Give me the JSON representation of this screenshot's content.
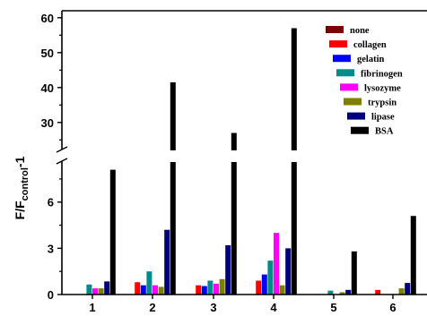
{
  "chart_data": {
    "type": "bar",
    "categories": [
      "1",
      "2",
      "3",
      "4",
      "5",
      "6"
    ],
    "ylabel": "F/F",
    "ylabel_subscript": "control",
    "ylabel_suffix": "-1",
    "y_axis_break": true,
    "ylim_lower": [
      0,
      8.6
    ],
    "ylim_upper": [
      22,
      62
    ],
    "yticks_lower": [
      0,
      3,
      6
    ],
    "yticks_upper": [
      30,
      40,
      50,
      60
    ],
    "legend_position": "top-right",
    "series": [
      {
        "name": "none",
        "color": "#7b0000",
        "values": [
          0,
          0,
          0,
          0,
          0,
          0
        ]
      },
      {
        "name": "collagen",
        "color": "#ff0000",
        "values": [
          0,
          0.8,
          0.6,
          0.9,
          0,
          0.3
        ]
      },
      {
        "name": "gelatin",
        "color": "#0000ff",
        "values": [
          0,
          0.6,
          0.55,
          1.3,
          0,
          0
        ]
      },
      {
        "name": "fibrinogen",
        "color": "#008b8b",
        "values": [
          0.65,
          1.5,
          0.9,
          2.2,
          0.25,
          0
        ]
      },
      {
        "name": "lysozyme",
        "color": "#ff00ff",
        "values": [
          0.4,
          0.6,
          0.7,
          4.0,
          0,
          0
        ]
      },
      {
        "name": "trypsin",
        "color": "#808000",
        "values": [
          0.4,
          0.5,
          1.0,
          0.6,
          0.15,
          0.4
        ]
      },
      {
        "name": "lipase",
        "color": "#00007b",
        "values": [
          0.85,
          4.2,
          3.2,
          3.0,
          0.3,
          0.75
        ]
      },
      {
        "name": "BSA",
        "color": "#000000",
        "values": [
          8.1,
          41.5,
          27,
          57,
          2.8,
          5.1
        ]
      }
    ]
  }
}
